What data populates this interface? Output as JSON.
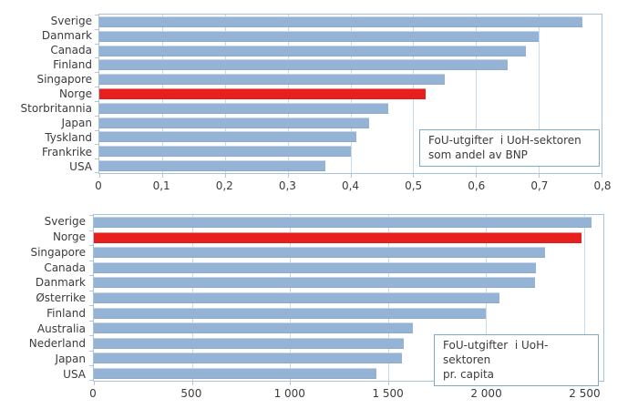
{
  "page": {
    "background": "#ffffff"
  },
  "colors": {
    "bar_blue": "#95b3d4",
    "bar_red": "#e8201d",
    "plot_border": "#a6c2dc",
    "gridline": "#c8dbeb",
    "tickmark": "#aec8e0",
    "text": "#3b3b3b"
  },
  "chart_data": [
    {
      "type": "bar",
      "orientation": "horizontal",
      "categories": [
        "Sverige",
        "Danmark",
        "Canada",
        "Finland",
        "Singapore",
        "Norge",
        "Storbritannia",
        "Japan",
        "Tyskland",
        "Frankrike",
        "USA"
      ],
      "values": [
        0.77,
        0.7,
        0.68,
        0.65,
        0.55,
        0.52,
        0.46,
        0.43,
        0.41,
        0.4,
        0.36
      ],
      "highlight_category": "Norge",
      "xlim": [
        0,
        0.8
      ],
      "grid": true,
      "legend": "none",
      "xticks": [
        {
          "v": 0,
          "label": "0"
        },
        {
          "v": 0.1,
          "label": "0,1"
        },
        {
          "v": 0.2,
          "label": "0,2"
        },
        {
          "v": 0.3,
          "label": "0,3"
        },
        {
          "v": 0.4,
          "label": "0,4"
        },
        {
          "v": 0.5,
          "label": "0,5"
        },
        {
          "v": 0.6,
          "label": "0,6"
        },
        {
          "v": 0.7,
          "label": "0,7"
        },
        {
          "v": 0.8,
          "label": "0,8"
        }
      ],
      "note_line1": "FoU-utgifter  i UoH-sektoren",
      "note_line2": "som andel av BNP"
    },
    {
      "type": "bar",
      "orientation": "horizontal",
      "categories": [
        "Sverige",
        "Norge",
        "Singapore",
        "Canada",
        "Danmark",
        "Østerrike",
        "Finland",
        "Australia",
        "Nederland",
        "Japan",
        "USA"
      ],
      "values": [
        2540,
        2490,
        2300,
        2255,
        2250,
        2070,
        2000,
        1630,
        1580,
        1570,
        1440
      ],
      "highlight_category": "Norge",
      "xlim": [
        0,
        2600
      ],
      "grid": true,
      "legend": "none",
      "xticks": [
        {
          "v": 0,
          "label": "0"
        },
        {
          "v": 500,
          "label": "500"
        },
        {
          "v": 1000,
          "label": "1 000"
        },
        {
          "v": 1500,
          "label": "1 500"
        },
        {
          "v": 2000,
          "label": "2 000"
        },
        {
          "v": 2500,
          "label": "2 500"
        }
      ],
      "note_line1": "FoU-utgifter  i UoH-sektoren",
      "note_line2": "pr. capita"
    }
  ]
}
